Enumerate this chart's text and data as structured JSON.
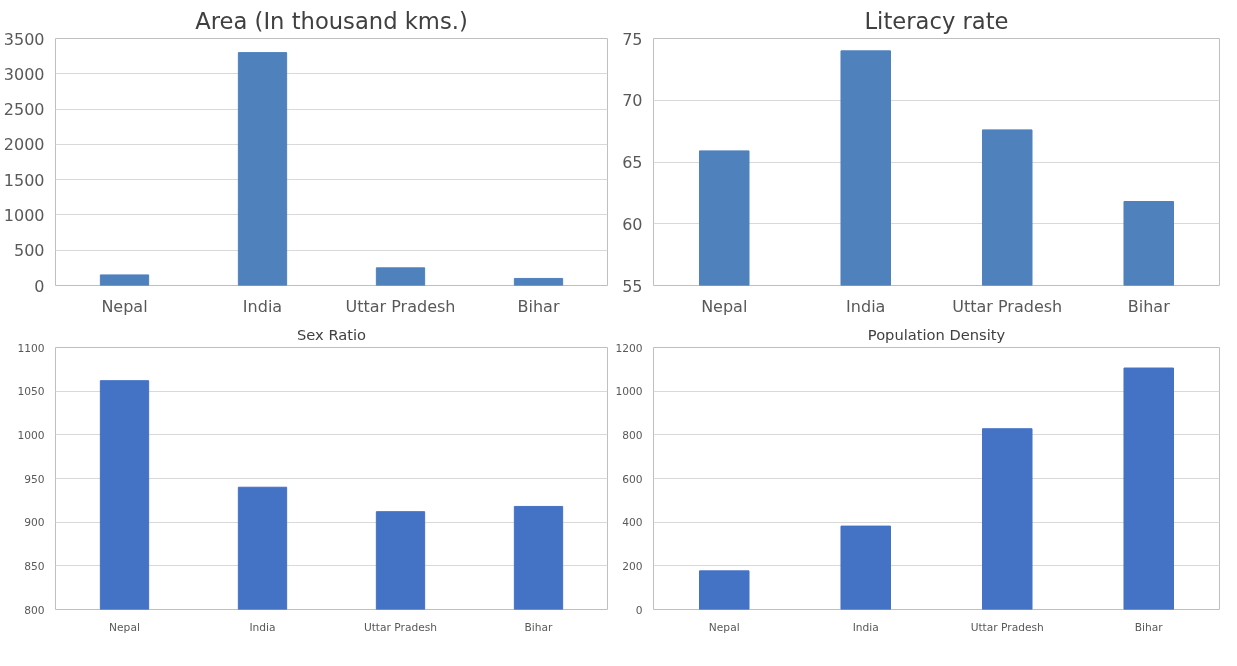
{
  "chart_data": [
    {
      "type": "bar",
      "title": "Area (In thousand kms.)",
      "categories": [
        "Nepal",
        "India",
        "Uttar Pradesh",
        "Bihar"
      ],
      "values": [
        150,
        3300,
        250,
        100
      ],
      "color": "#4f81bd",
      "ylim": [
        0,
        3500
      ],
      "yticks": [
        0,
        500,
        1000,
        1500,
        2000,
        2500,
        3000,
        3500
      ],
      "grid": "y"
    },
    {
      "type": "bar",
      "title": "Literacy rate",
      "categories": [
        "Nepal",
        "India",
        "Uttar Pradesh",
        "Bihar"
      ],
      "values": [
        65.9,
        74,
        67.6,
        61.8
      ],
      "color": "#4f81bd",
      "ylim": [
        55,
        75
      ],
      "yticks": [
        55,
        60,
        65,
        70,
        75
      ],
      "grid": "y"
    },
    {
      "type": "bar",
      "title": "Sex Ratio",
      "categories": [
        "Nepal",
        "India",
        "Uttar Pradesh",
        "Bihar"
      ],
      "values": [
        1062,
        940,
        912,
        918
      ],
      "color": "#4472c4",
      "ylim": [
        800,
        1100
      ],
      "yticks": [
        800,
        850,
        900,
        950,
        1000,
        1050,
        1100
      ],
      "grid": "y"
    },
    {
      "type": "bar",
      "title": "Population Density",
      "categories": [
        "Nepal",
        "India",
        "Uttar Pradesh",
        "Bihar"
      ],
      "values": [
        177,
        382,
        828,
        1106
      ],
      "color": "#4472c4",
      "ylim": [
        0,
        1200
      ],
      "yticks": [
        0,
        200,
        400,
        600,
        800,
        1000,
        1200
      ],
      "grid": "y"
    }
  ]
}
